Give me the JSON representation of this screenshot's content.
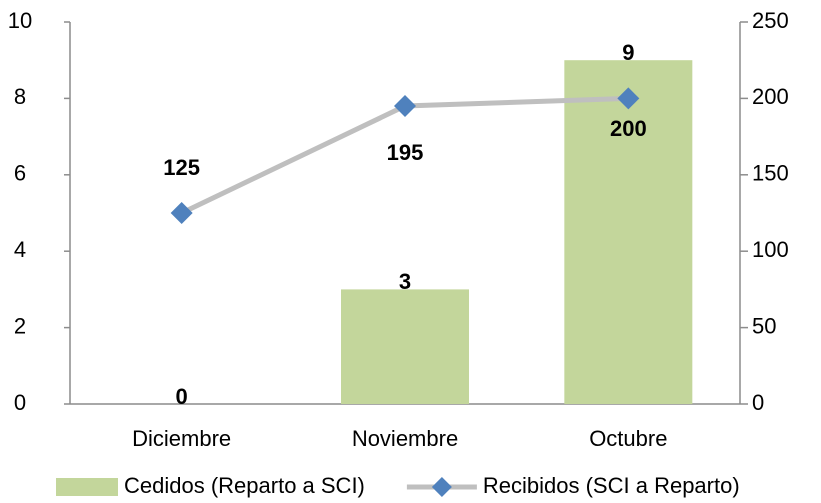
{
  "chart_data": {
    "type": "bar_line",
    "categories": [
      "Diciembre",
      "Noviembre",
      "Octubre"
    ],
    "series": [
      {
        "name": "Cedidos (Reparto a SCI)",
        "color": "#c3d69b",
        "type": "bar",
        "values": [
          0,
          3,
          9
        ]
      },
      {
        "name": "Recibidos (SCI a Reparto)",
        "color": "#bfbfbf",
        "marker_color": "#4f81bd",
        "type": "line",
        "axis": "y2",
        "values": [
          125,
          195,
          200
        ]
      }
    ],
    "ylim": [
      0,
      10
    ],
    "yticks": [
      0,
      2,
      4,
      6,
      8,
      10
    ],
    "y2lim": [
      0,
      250
    ],
    "y2ticks": [
      0,
      50,
      100,
      150,
      200,
      250
    ],
    "legend": "bottom"
  }
}
